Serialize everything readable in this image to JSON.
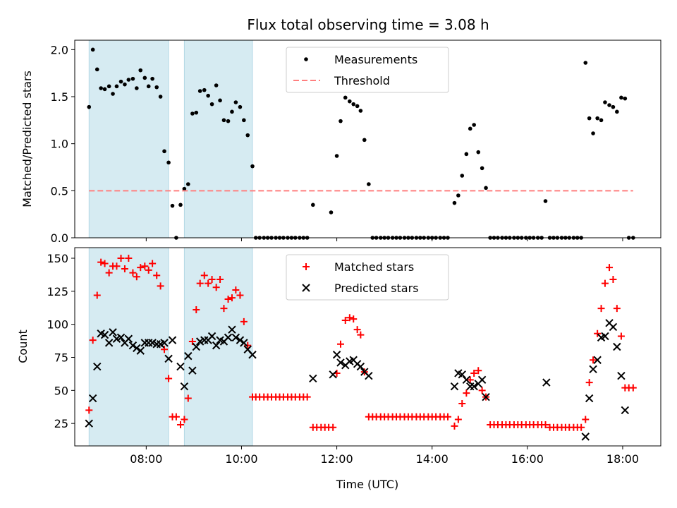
{
  "figure": {
    "title": "Flux total observing time = 3.08 h"
  },
  "chart_data": [
    {
      "type": "scatter",
      "ylabel": "Matched/Predicted stars",
      "xlim": [
        6.5,
        18.8
      ],
      "ylim": [
        0,
        2.1
      ],
      "yticks": [
        0.0,
        0.5,
        1.0,
        1.5,
        2.0
      ],
      "ytick_labels": [
        "0.0",
        "0.5",
        "1.0",
        "1.5",
        "2.0"
      ],
      "shaded_intervals": [
        [
          6.8,
          8.47
        ],
        [
          8.8,
          10.23
        ]
      ],
      "legend": {
        "placement": "top-center",
        "entries": [
          "Measurements",
          "Threshold"
        ]
      },
      "series": [
        {
          "name": "Measurements",
          "marker": "dot",
          "color": "#000000",
          "x": [
            6.8,
            6.88,
            6.97,
            7.05,
            7.13,
            7.22,
            7.3,
            7.38,
            7.47,
            7.55,
            7.63,
            7.72,
            7.8,
            7.88,
            7.97,
            8.05,
            8.13,
            8.22,
            8.3,
            8.38,
            8.47,
            8.55,
            8.63,
            8.72,
            8.8,
            8.88,
            8.97,
            9.05,
            9.13,
            9.22,
            9.3,
            9.38,
            9.47,
            9.55,
            9.63,
            9.72,
            9.8,
            9.88,
            9.97,
            10.05,
            10.13,
            10.23,
            10.3,
            10.38,
            10.47,
            10.55,
            10.63,
            10.72,
            10.8,
            10.88,
            10.97,
            11.05,
            11.13,
            11.22,
            11.3,
            11.38,
            11.5,
            11.88,
            12.0,
            12.08,
            12.18,
            12.27,
            12.35,
            12.43,
            12.5,
            12.58,
            12.67,
            12.75,
            12.83,
            12.92,
            13.0,
            13.08,
            13.17,
            13.25,
            13.33,
            13.42,
            13.5,
            13.58,
            13.67,
            13.75,
            13.83,
            13.92,
            14.0,
            14.08,
            14.17,
            14.25,
            14.33,
            14.47,
            14.55,
            14.63,
            14.72,
            14.8,
            14.88,
            14.97,
            15.05,
            15.13,
            15.22,
            15.3,
            15.38,
            15.47,
            15.55,
            15.63,
            15.72,
            15.8,
            15.88,
            15.97,
            16.05,
            16.13,
            16.22,
            16.3,
            16.38,
            16.47,
            16.55,
            16.63,
            16.72,
            16.8,
            16.88,
            16.97,
            17.05,
            17.13,
            17.22,
            17.3,
            17.38,
            17.47,
            17.55,
            17.63,
            17.72,
            17.8,
            17.88,
            17.97,
            18.05,
            18.13,
            18.22
          ],
          "y": [
            1.39,
            2.0,
            1.79,
            1.59,
            1.58,
            1.61,
            1.53,
            1.61,
            1.66,
            1.63,
            1.68,
            1.69,
            1.59,
            1.78,
            1.7,
            1.61,
            1.69,
            1.6,
            1.5,
            0.92,
            0.8,
            0.34,
            0.0,
            0.35,
            0.52,
            0.57,
            1.32,
            1.33,
            1.56,
            1.57,
            1.51,
            1.42,
            1.62,
            1.46,
            1.25,
            1.24,
            1.34,
            1.44,
            1.39,
            1.25,
            1.09,
            0.76,
            0.0,
            0.0,
            0.0,
            0.0,
            0.0,
            0.0,
            0.0,
            0.0,
            0.0,
            0.0,
            0.0,
            0.0,
            0.0,
            0.0,
            0.35,
            0.27,
            0.87,
            1.24,
            1.49,
            1.45,
            1.42,
            1.4,
            1.35,
            1.04,
            0.57,
            0.0,
            0.0,
            0.0,
            0.0,
            0.0,
            0.0,
            0.0,
            0.0,
            0.0,
            0.0,
            0.0,
            0.0,
            0.0,
            0.0,
            0.0,
            0.0,
            0.0,
            0.0,
            0.0,
            0.0,
            0.37,
            0.45,
            0.66,
            0.89,
            1.16,
            1.2,
            0.91,
            0.74,
            0.53,
            0.0,
            0.0,
            0.0,
            0.0,
            0.0,
            0.0,
            0.0,
            0.0,
            0.0,
            0.0,
            0.0,
            0.0,
            0.0,
            0.0,
            0.39,
            0.0,
            0.0,
            0.0,
            0.0,
            0.0,
            0.0,
            0.0,
            0.0,
            0.0,
            1.86,
            1.27,
            1.11,
            1.27,
            1.25,
            1.44,
            1.41,
            1.39,
            1.34,
            1.49,
            1.48,
            0.0,
            0.0
          ]
        },
        {
          "name": "Threshold",
          "style": "dashed",
          "color": "#ff7f7f",
          "x": [
            6.8,
            18.22
          ],
          "y": [
            0.5,
            0.5
          ]
        }
      ]
    },
    {
      "type": "scatter",
      "xlabel": "Time (UTC)",
      "ylabel": "Count",
      "xlim": [
        6.5,
        18.8
      ],
      "ylim": [
        8,
        158
      ],
      "xticks": [
        8,
        10,
        12,
        14,
        16,
        18
      ],
      "xtick_labels": [
        "08:00",
        "10:00",
        "12:00",
        "14:00",
        "16:00",
        "18:00"
      ],
      "yticks": [
        25,
        50,
        75,
        100,
        125,
        150
      ],
      "ytick_labels": [
        "25",
        "50",
        "75",
        "100",
        "125",
        "150"
      ],
      "shaded_intervals": [
        [
          6.8,
          8.47
        ],
        [
          8.8,
          10.23
        ]
      ],
      "legend": {
        "placement": "top-center",
        "entries": [
          "Matched stars",
          "Predicted stars"
        ]
      },
      "series": [
        {
          "name": "Matched stars",
          "marker": "plus",
          "color": "#ff0000",
          "x": [
            6.8,
            6.88,
            6.97,
            7.05,
            7.13,
            7.22,
            7.3,
            7.38,
            7.47,
            7.55,
            7.63,
            7.72,
            7.8,
            7.88,
            7.97,
            8.05,
            8.13,
            8.22,
            8.3,
            8.38,
            8.47,
            8.55,
            8.63,
            8.72,
            8.8,
            8.88,
            8.97,
            9.05,
            9.13,
            9.22,
            9.3,
            9.38,
            9.47,
            9.55,
            9.63,
            9.72,
            9.8,
            9.88,
            9.97,
            10.05,
            10.13,
            10.23,
            10.3,
            10.38,
            10.47,
            10.55,
            10.63,
            10.72,
            10.8,
            10.88,
            10.97,
            11.05,
            11.13,
            11.22,
            11.3,
            11.38,
            11.5,
            11.58,
            11.67,
            11.75,
            11.83,
            11.92,
            12.0,
            12.08,
            12.18,
            12.27,
            12.35,
            12.43,
            12.5,
            12.58,
            12.67,
            12.75,
            12.83,
            12.92,
            13.0,
            13.08,
            13.17,
            13.25,
            13.33,
            13.42,
            13.5,
            13.58,
            13.67,
            13.75,
            13.83,
            13.92,
            14.0,
            14.08,
            14.17,
            14.25,
            14.33,
            14.47,
            14.55,
            14.63,
            14.72,
            14.8,
            14.88,
            14.97,
            15.05,
            15.13,
            15.22,
            15.3,
            15.38,
            15.47,
            15.55,
            15.63,
            15.72,
            15.8,
            15.88,
            15.97,
            16.05,
            16.13,
            16.22,
            16.3,
            16.38,
            16.47,
            16.55,
            16.63,
            16.72,
            16.8,
            16.88,
            16.97,
            17.05,
            17.13,
            17.22,
            17.3,
            17.38,
            17.47,
            17.55,
            17.63,
            17.72,
            17.8,
            17.88,
            17.97,
            18.05,
            18.13,
            18.22
          ],
          "y": [
            35,
            88,
            122,
            147,
            146,
            139,
            144,
            144,
            150,
            142,
            150,
            139,
            136,
            143,
            144,
            141,
            146,
            137,
            129,
            81,
            59,
            30,
            30,
            24,
            28,
            44,
            87,
            111,
            131,
            137,
            131,
            134,
            128,
            134,
            112,
            119,
            120,
            126,
            122,
            102,
            84,
            45,
            45,
            45,
            45,
            45,
            45,
            45,
            45,
            45,
            45,
            45,
            45,
            45,
            45,
            45,
            22,
            22,
            22,
            22,
            22,
            22,
            63,
            85,
            103,
            105,
            104,
            96,
            92,
            64,
            30,
            30,
            30,
            30,
            30,
            30,
            30,
            30,
            30,
            30,
            30,
            30,
            30,
            30,
            30,
            30,
            30,
            30,
            30,
            30,
            30,
            23,
            28,
            40,
            48,
            58,
            63,
            65,
            50,
            45,
            24,
            24,
            24,
            24,
            24,
            24,
            24,
            24,
            24,
            24,
            24,
            24,
            24,
            24,
            24,
            22,
            22,
            22,
            22,
            22,
            22,
            22,
            22,
            22,
            28,
            56,
            73,
            93,
            112,
            131,
            143,
            134,
            112,
            91,
            52,
            52,
            52
          ]
        },
        {
          "name": "Predicted stars",
          "marker": "x",
          "color": "#000000",
          "x": [
            6.8,
            6.88,
            6.97,
            7.05,
            7.13,
            7.22,
            7.3,
            7.38,
            7.47,
            7.55,
            7.63,
            7.72,
            7.8,
            7.88,
            7.97,
            8.05,
            8.13,
            8.22,
            8.3,
            8.38,
            8.47,
            8.55,
            8.72,
            8.8,
            8.88,
            8.97,
            9.05,
            9.13,
            9.22,
            9.3,
            9.38,
            9.47,
            9.55,
            9.63,
            9.72,
            9.8,
            9.88,
            9.97,
            10.05,
            10.13,
            10.23,
            11.5,
            11.92,
            12.0,
            12.08,
            12.18,
            12.27,
            12.35,
            12.43,
            12.5,
            12.58,
            12.67,
            14.47,
            14.55,
            14.63,
            14.72,
            14.8,
            14.88,
            14.97,
            15.05,
            15.13,
            16.4,
            17.22,
            17.3,
            17.38,
            17.47,
            17.55,
            17.63,
            17.72,
            17.8,
            17.88,
            17.97,
            18.05
          ],
          "y": [
            25,
            44,
            68,
            93,
            92,
            86,
            94,
            89,
            90,
            86,
            89,
            84,
            82,
            80,
            86,
            86,
            86,
            85,
            85,
            86,
            74,
            88,
            68,
            53,
            76,
            65,
            83,
            87,
            88,
            88,
            91,
            84,
            88,
            87,
            90,
            96,
            90,
            88,
            86,
            81,
            77,
            59,
            62,
            77,
            71,
            69,
            72,
            73,
            70,
            68,
            64,
            61,
            53,
            63,
            62,
            58,
            53,
            53,
            55,
            58,
            45,
            56,
            15,
            44,
            66,
            73,
            90,
            91,
            101,
            98,
            83,
            61,
            35
          ]
        }
      ]
    }
  ]
}
